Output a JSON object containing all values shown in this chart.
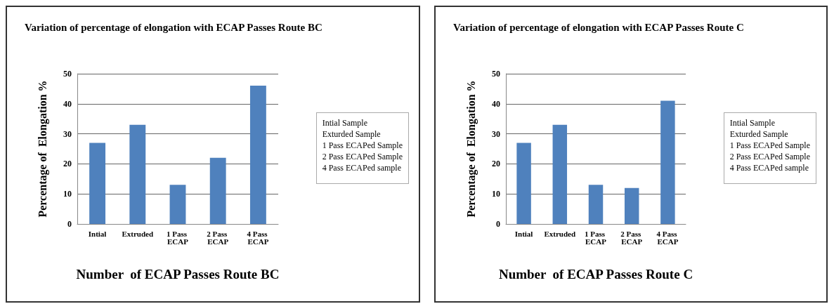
{
  "chart_data": [
    {
      "type": "bar",
      "title": "Variation of percentage of elongation with ECAP Passes Route BC",
      "xlabel": "Number  of ECAP Passes Route BC",
      "ylabel": "Percentage of  Elongation %",
      "categories": [
        "Intial",
        "Extruded",
        "1 Pass ECAP",
        "2 Pass ECAP",
        "4 Pass ECAP"
      ],
      "values": [
        27,
        33,
        13,
        22,
        46
      ],
      "color": "#4f81bd",
      "ylim": [
        0,
        50
      ],
      "yticks": [
        0,
        10,
        20,
        30,
        40,
        50
      ],
      "grid": "y",
      "annotations": [
        "Intial Sample",
        "Exturded Sample",
        "1 Pass ECAPed Sample",
        "2 Pass ECAPed Sample",
        "4 Pass ECAPed sample"
      ]
    },
    {
      "type": "bar",
      "title": "Variation of percentage of elongation with ECAP Passes Route C",
      "xlabel": "Number  of ECAP Passes Route C",
      "ylabel": "Percentage of  Elongation %",
      "categories": [
        "Intial",
        "Extruded",
        "1 Pass ECAP",
        "2 Pass ECAP",
        "4 Pass ECAP"
      ],
      "values": [
        27,
        33,
        13,
        12,
        41
      ],
      "color": "#4f81bd",
      "ylim": [
        0,
        50
      ],
      "yticks": [
        0,
        10,
        20,
        30,
        40,
        50
      ],
      "grid": "y",
      "annotations": [
        "Intial Sample",
        "Exturded Sample",
        "1 Pass ECAPed Sample",
        "2 Pass ECAPed Sample",
        "4 Pass ECAPed sample"
      ]
    }
  ]
}
